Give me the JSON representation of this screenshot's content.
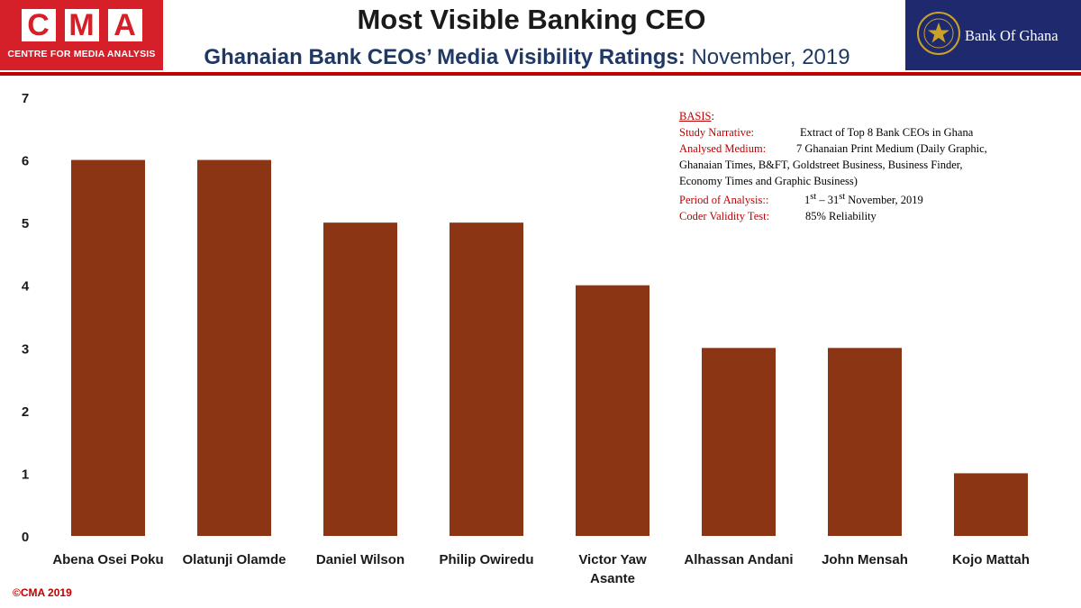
{
  "header": {
    "org_letters": [
      "C",
      "M",
      "A"
    ],
    "org_name": "CENTRE FOR MEDIA ANALYSIS",
    "title": "Most Visible Banking CEO",
    "subtitle_main": "Ghanaian Bank CEOs’ Media Visibility Ratings:",
    "subtitle_date": "November, 2019",
    "partner_name": "Bank Of Ghana",
    "colors": {
      "cma_red": "#d5202a",
      "bog_blue": "#1f2a6e",
      "divider": "#c00000"
    }
  },
  "basis": {
    "heading": "BASIS",
    "study_label": "Study Narrative:",
    "study_value": "Extract of Top 8 Bank CEOs in Ghana",
    "medium_label": "Analysed Medium:",
    "medium_value_1": "7 Ghanaian Print Medium (Daily Graphic,",
    "medium_value_2": "Ghanaian Times, B&FT, Goldstreet Business, Business Finder,",
    "medium_value_3": "Economy Times and Graphic Business)",
    "period_label": "Period of Analysis::",
    "period_start": "1",
    "period_start_sup": "st",
    "period_dash": " – 31",
    "period_end_sup": "st",
    "period_end": " November, 2019",
    "validity_label": "Coder Validity Test:",
    "validity_value": "85% Reliability"
  },
  "footer": {
    "copyright": "©CMA 2019"
  },
  "chart_data": {
    "type": "bar",
    "title": "",
    "xlabel": "",
    "ylabel": "",
    "categories": [
      "Abena Osei Poku",
      "Olatunji Olamde",
      "Daniel Wilson",
      "Philip Owiredu",
      "Victor Yaw Asante",
      "Alhassan Andani",
      "John Mensah",
      "Kojo Mattah"
    ],
    "values": [
      6,
      6,
      5,
      5,
      4,
      3,
      3,
      1
    ],
    "ylim": [
      0,
      7
    ],
    "yticks": [
      0,
      1,
      2,
      3,
      4,
      5,
      6,
      7
    ],
    "bar_color": "#8b3514",
    "grid": false,
    "legend": "none"
  }
}
